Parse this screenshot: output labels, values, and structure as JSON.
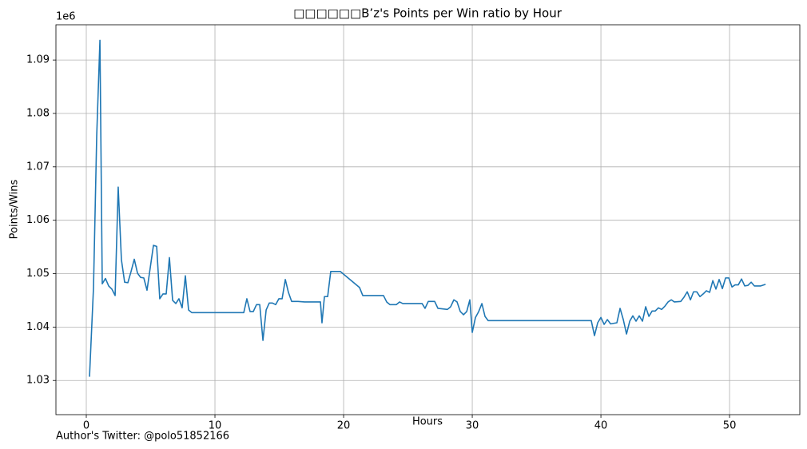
{
  "chart_data": {
    "type": "line",
    "title": "□□□□□□B’z's Points per Win ratio by Hour",
    "x_label": "Hours",
    "y_label": "Points/Wins",
    "y_offset_label": "1e6",
    "footer": "Author's Twitter: @polo51852166",
    "color": "#1f77b4",
    "grid": true,
    "xlim": [
      -2.36,
      55.46
    ],
    "ylim": [
      1.0236,
      1.0966
    ],
    "xticks": [
      0,
      10,
      20,
      30,
      40,
      50
    ],
    "yticks": [
      1.03,
      1.04,
      1.05,
      1.06,
      1.07,
      1.08,
      1.09
    ],
    "x": [
      0.25,
      0.56,
      0.81,
      1.06,
      1.24,
      1.49,
      1.74,
      1.99,
      2.24,
      2.48,
      2.73,
      2.98,
      3.23,
      3.48,
      3.73,
      3.98,
      4.22,
      4.47,
      4.72,
      4.97,
      5.22,
      5.47,
      5.71,
      5.96,
      6.21,
      6.46,
      6.71,
      6.96,
      7.2,
      7.45,
      7.7,
      7.95,
      8.2,
      12.24,
      12.48,
      12.73,
      12.98,
      13.23,
      13.48,
      13.73,
      13.98,
      14.22,
      14.47,
      14.72,
      14.97,
      15.22,
      15.47,
      15.71,
      15.96,
      16.46,
      16.96,
      17.95,
      18.2,
      18.32,
      18.51,
      18.76,
      19.0,
      19.75,
      21.24,
      21.49,
      23.1,
      23.35,
      23.6,
      24.1,
      24.35,
      24.6,
      25.84,
      26.1,
      26.33,
      26.58,
      27.08,
      27.33,
      28.07,
      28.32,
      28.57,
      28.82,
      29.07,
      29.32,
      29.57,
      29.81,
      30.0,
      30.25,
      30.5,
      30.75,
      30.99,
      31.24,
      39.25,
      39.5,
      39.75,
      40.0,
      40.25,
      40.5,
      40.75,
      41.24,
      41.49,
      41.74,
      41.99,
      42.24,
      42.48,
      42.73,
      42.98,
      43.23,
      43.48,
      43.73,
      43.98,
      44.22,
      44.47,
      44.72,
      44.97,
      45.22,
      45.47,
      45.71,
      46.21,
      46.46,
      46.71,
      46.96,
      47.2,
      47.45,
      47.7,
      47.95,
      48.2,
      48.45,
      48.7,
      48.94,
      49.19,
      49.44,
      49.69,
      49.94,
      50.19,
      50.43,
      50.68,
      50.93,
      51.18,
      51.43,
      51.68,
      51.93,
      52.42,
      52.8
    ],
    "values": [
      1.0307,
      1.0474,
      1.0758,
      1.0937,
      1.0481,
      1.0491,
      1.0477,
      1.0471,
      1.0459,
      1.0662,
      1.0526,
      1.0484,
      1.0483,
      1.0504,
      1.0527,
      1.0501,
      1.0493,
      1.0492,
      1.0469,
      1.0511,
      1.0553,
      1.0551,
      1.0453,
      1.0462,
      1.0462,
      1.053,
      1.045,
      1.0444,
      1.0453,
      1.0436,
      1.0496,
      1.0432,
      1.0427,
      1.0427,
      1.0453,
      1.0429,
      1.0429,
      1.0442,
      1.0442,
      1.0375,
      1.0432,
      1.0445,
      1.0445,
      1.0442,
      1.0453,
      1.0453,
      1.0489,
      1.0465,
      1.0448,
      1.0448,
      1.0447,
      1.0447,
      1.0447,
      1.0408,
      1.0457,
      1.0457,
      1.0504,
      1.0504,
      1.0474,
      1.0459,
      1.0459,
      1.0447,
      1.0442,
      1.0442,
      1.0447,
      1.0444,
      1.0444,
      1.0444,
      1.0435,
      1.0448,
      1.0448,
      1.0435,
      1.0433,
      1.0438,
      1.0451,
      1.0447,
      1.0429,
      1.0423,
      1.0429,
      1.0451,
      1.039,
      1.0418,
      1.0429,
      1.0444,
      1.042,
      1.0412,
      1.0412,
      1.0384,
      1.0408,
      1.0418,
      1.0405,
      1.0414,
      1.0406,
      1.0408,
      1.0435,
      1.0414,
      1.0387,
      1.0411,
      1.0421,
      1.0411,
      1.0421,
      1.0411,
      1.0438,
      1.042,
      1.043,
      1.043,
      1.0436,
      1.0433,
      1.0439,
      1.0447,
      1.0451,
      1.0447,
      1.0448,
      1.0456,
      1.0466,
      1.0451,
      1.0466,
      1.0466,
      1.0457,
      1.0462,
      1.0468,
      1.0465,
      1.0487,
      1.0471,
      1.0489,
      1.0472,
      1.0492,
      1.0492,
      1.0475,
      1.0479,
      1.0479,
      1.049,
      1.0477,
      1.0478,
      1.0484,
      1.0477,
      1.0477,
      1.048
    ]
  }
}
